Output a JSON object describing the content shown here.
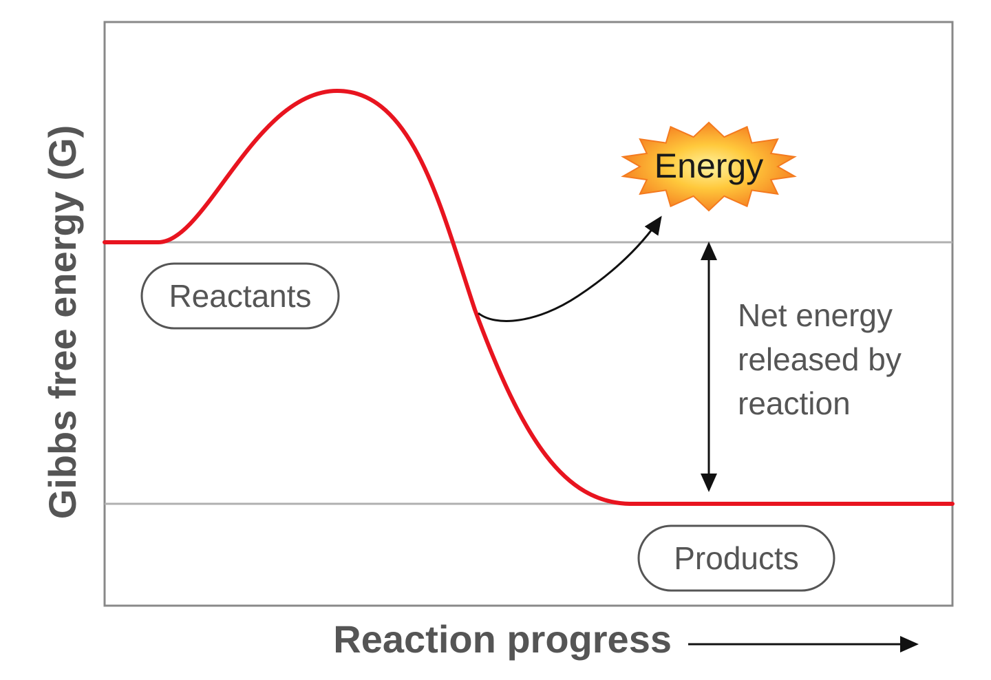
{
  "axes": {
    "y_label": "Gibbs free energy (G)",
    "x_label": "Reaction progress"
  },
  "labels": {
    "reactants": "Reactants",
    "products": "Products",
    "energy": "Energy",
    "net_energy_lines": [
      "Net energy",
      "released by",
      "reaction"
    ]
  },
  "colors": {
    "curve": "#e8141f",
    "frame": "#888888",
    "guide_lines": "#b0b0b0",
    "text": "#555555",
    "arrows": "#111111",
    "burst_center": "#ffe066",
    "burst_edge": "#f47a1f"
  }
}
